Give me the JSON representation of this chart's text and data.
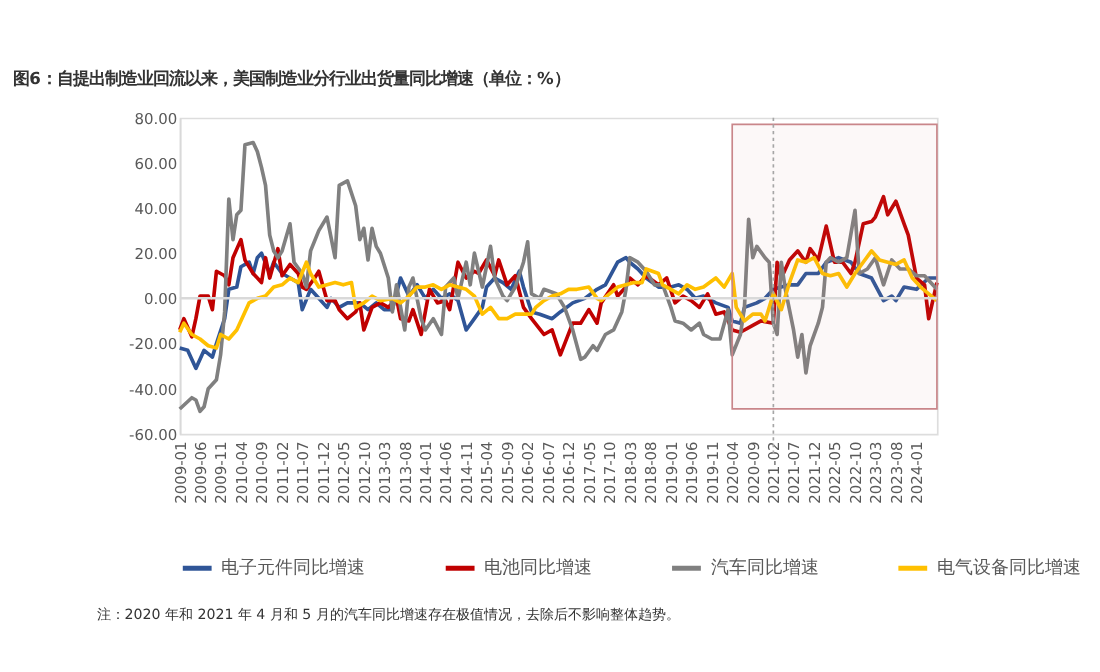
{
  "chart_data": {
    "type": "line",
    "title": "图6：自提出制造业回流以来，美国制造业分行业出货量同比增速（单位：%）",
    "annotations": [
      "注：2020 年和 2021 年 4 月和 5 月的汽车同比增速存在极值情况，去除后不影响整体趋势。"
    ],
    "xlim": [
      "2009-01",
      "2024-06"
    ],
    "xticks": [
      "2009-01",
      "2009-06",
      "2009-11",
      "2010-04",
      "2010-09",
      "2011-02",
      "2011-07",
      "2011-12",
      "2012-05",
      "2012-10",
      "2013-03",
      "2013-08",
      "2014-01",
      "2014-06",
      "2014-11",
      "2015-04",
      "2015-09",
      "2016-02",
      "2016-07",
      "2016-12",
      "2017-05",
      "2017-10",
      "2018-03",
      "2018-08",
      "2019-01",
      "2019-06",
      "2019-11",
      "2020-04",
      "2020-09",
      "2021-02",
      "2021-07",
      "2021-12",
      "2022-05",
      "2022-10",
      "2023-03",
      "2023-08",
      "2024-01"
    ],
    "ylim": [
      -60,
      80
    ],
    "yticks": [
      {
        "value": -60,
        "label": "-60.00"
      },
      {
        "value": -40,
        "label": "-40.00"
      },
      {
        "value": -20,
        "label": "-20.00"
      },
      {
        "value": 0,
        "label": "0.00"
      },
      {
        "value": 20,
        "label": "20.00"
      },
      {
        "value": 40,
        "label": "40.00"
      },
      {
        "value": 60,
        "label": "60.00"
      },
      {
        "value": 80,
        "label": "80.00"
      }
    ],
    "grid": false,
    "legend": "bottom",
    "marker": "none",
    "line_style": "solid",
    "ref_lines": [
      {
        "axis": "y",
        "value": 0,
        "color": "#d9d9d9",
        "line_style": "solid"
      },
      {
        "axis": "x",
        "value": "2021-02",
        "color": "#a6a6a6",
        "line_style": "dotted"
      }
    ],
    "bands": [
      {
        "axis": "x",
        "from": "2020-04",
        "to": "2024-06",
        "color": "#c9868a"
      }
    ],
    "series": [
      {
        "name": "电子元件同比增速",
        "color": "#2f5597",
        "x": [
          "2009-01",
          "2009-03",
          "2009-05",
          "2009-06",
          "2009-07",
          "2009-09",
          "2009-10",
          "2009-12",
          "2010-01",
          "2010-03",
          "2010-04",
          "2010-06",
          "2010-07",
          "2010-08",
          "2010-09",
          "2010-11",
          "2010-12",
          "2011-02",
          "2011-04",
          "2011-06",
          "2011-07",
          "2011-09",
          "2011-11",
          "2012-01",
          "2012-02",
          "2012-04",
          "2012-06",
          "2012-09",
          "2012-11",
          "2013-01",
          "2013-03",
          "2013-05",
          "2013-07",
          "2013-09",
          "2013-11",
          "2014-01",
          "2014-03",
          "2014-05",
          "2014-07",
          "2014-09",
          "2014-11",
          "2015-01",
          "2015-03",
          "2015-04",
          "2015-06",
          "2015-08",
          "2015-10",
          "2015-12",
          "2016-01",
          "2016-03",
          "2016-05",
          "2016-08",
          "2016-10",
          "2017-01",
          "2017-04",
          "2017-07",
          "2017-09",
          "2017-12",
          "2018-02",
          "2018-03",
          "2018-05",
          "2018-07",
          "2018-10",
          "2019-01",
          "2019-03",
          "2019-05",
          "2019-07",
          "2019-09",
          "2019-12",
          "2020-03",
          "2020-04",
          "2020-06",
          "2020-07",
          "2020-10",
          "2020-12",
          "2021-02",
          "2021-04",
          "2021-06",
          "2021-08",
          "2021-10",
          "2022-01",
          "2022-03",
          "2022-06",
          "2022-09",
          "2022-11",
          "2023-02",
          "2023-05",
          "2023-07",
          "2023-08",
          "2023-10",
          "2024-01",
          "2024-04",
          "2024-06"
        ],
        "values": [
          -22,
          -23,
          -31,
          -27,
          -23,
          -26,
          -20,
          -9,
          4,
          5,
          14,
          16,
          11,
          18,
          20,
          11,
          16,
          11,
          9,
          7,
          -5,
          4,
          0,
          -4,
          0,
          -4,
          -2,
          -2,
          -5,
          -2,
          -5,
          -5,
          9,
          1,
          6,
          0,
          4,
          0,
          2,
          -1,
          -14,
          -9,
          -4,
          5,
          9,
          7,
          4,
          12,
          5,
          -6,
          -7,
          -9,
          -6,
          -2,
          0,
          4,
          6,
          16,
          18,
          16,
          13,
          9,
          5,
          5,
          6,
          4,
          0,
          1,
          -2,
          -4,
          -10,
          -11,
          -4,
          -2,
          0,
          4,
          5,
          6,
          6,
          11,
          11,
          16,
          18,
          16,
          11,
          9,
          -1,
          1,
          -1,
          5,
          4,
          9,
          9
        ]
      },
      {
        "name": "电池同比增速",
        "color": "#c00000",
        "x": [
          "2009-01",
          "2009-02",
          "2009-04",
          "2009-05",
          "2009-06",
          "2009-08",
          "2009-09",
          "2009-10",
          "2009-12",
          "2010-01",
          "2010-02",
          "2010-04",
          "2010-05",
          "2010-07",
          "2010-09",
          "2010-10",
          "2010-11",
          "2011-01",
          "2011-02",
          "2011-04",
          "2011-06",
          "2011-07",
          "2011-08",
          "2011-10",
          "2011-11",
          "2012-01",
          "2012-03",
          "2012-04",
          "2012-06",
          "2012-08",
          "2012-09",
          "2012-10",
          "2012-12",
          "2013-02",
          "2013-04",
          "2013-06",
          "2013-07",
          "2013-09",
          "2013-10",
          "2013-12",
          "2014-02",
          "2014-04",
          "2014-06",
          "2014-07",
          "2014-09",
          "2014-11",
          "2015-01",
          "2015-02",
          "2015-04",
          "2015-06",
          "2015-07",
          "2015-09",
          "2015-11",
          "2016-01",
          "2016-03",
          "2016-06",
          "2016-08",
          "2016-10",
          "2017-01",
          "2017-03",
          "2017-05",
          "2017-07",
          "2017-08",
          "2017-11",
          "2017-12",
          "2018-02",
          "2018-03",
          "2018-05",
          "2018-07",
          "2018-10",
          "2018-12",
          "2019-02",
          "2019-04",
          "2019-06",
          "2019-08",
          "2019-10",
          "2019-12",
          "2020-02",
          "2020-04",
          "2020-06",
          "2020-09",
          "2020-11",
          "2021-02",
          "2021-03",
          "2021-04",
          "2021-06",
          "2021-08",
          "2021-10",
          "2021-11",
          "2022-01",
          "2022-03",
          "2022-05",
          "2022-07",
          "2022-09",
          "2022-10",
          "2022-12",
          "2023-02",
          "2023-03",
          "2023-05",
          "2023-06",
          "2023-08",
          "2023-10",
          "2023-11",
          "2024-01",
          "2024-03",
          "2024-04",
          "2024-06"
        ],
        "values": [
          -14,
          -9,
          -17,
          -9,
          1,
          1,
          -5,
          12,
          10,
          6,
          18,
          26,
          17,
          11,
          7,
          18,
          9,
          22,
          10,
          15,
          11,
          5,
          4,
          9,
          12,
          -1,
          -1,
          -5,
          -9,
          -6,
          -2,
          -14,
          -4,
          -2,
          -4,
          0,
          -9,
          -10,
          -5,
          -16,
          4,
          -2,
          -1,
          -5,
          16,
          9,
          12,
          11,
          17,
          10,
          17,
          6,
          10,
          -4,
          -9,
          -16,
          -14,
          -25,
          -11,
          -11,
          -5,
          -11,
          -2,
          6,
          1,
          5,
          9,
          6,
          10,
          6,
          9,
          -2,
          1,
          -1,
          -4,
          2,
          -7,
          -6,
          -14,
          -15,
          -12,
          -10,
          -11,
          16,
          9,
          17,
          21,
          16,
          22,
          17,
          32,
          16,
          16,
          11,
          16,
          33,
          34,
          36,
          45,
          37,
          43,
          33,
          28,
          9,
          6,
          -9,
          7
        ]
      },
      {
        "name": "汽车同比增速",
        "color": "#808080",
        "x": [
          "2009-01",
          "2009-04",
          "2009-05",
          "2009-06",
          "2009-07",
          "2009-08",
          "2009-10",
          "2009-11",
          "2009-12",
          "2010-01",
          "2010-02",
          "2010-03",
          "2010-04",
          "2010-05",
          "2010-07",
          "2010-08",
          "2010-09",
          "2010-10",
          "2010-11",
          "2010-12",
          "2011-01",
          "2011-02",
          "2011-04",
          "2011-05",
          "2011-07",
          "2011-08",
          "2011-09",
          "2011-11",
          "2012-01",
          "2012-03",
          "2012-04",
          "2012-06",
          "2012-08",
          "2012-09",
          "2012-10",
          "2012-11",
          "2012-12",
          "2013-01",
          "2013-02",
          "2013-04",
          "2013-05",
          "2013-06",
          "2013-08",
          "2013-09",
          "2013-10",
          "2013-12",
          "2014-01",
          "2014-03",
          "2014-05",
          "2014-06",
          "2014-08",
          "2014-09",
          "2014-11",
          "2014-12",
          "2015-01",
          "2015-03",
          "2015-05",
          "2015-06",
          "2015-08",
          "2015-09",
          "2015-11",
          "2016-01",
          "2016-02",
          "2016-03",
          "2016-05",
          "2016-06",
          "2016-09",
          "2016-11",
          "2017-01",
          "2017-03",
          "2017-04",
          "2017-06",
          "2017-07",
          "2017-09",
          "2017-11",
          "2018-01",
          "2018-02",
          "2018-03",
          "2018-05",
          "2018-07",
          "2018-09",
          "2018-11",
          "2019-01",
          "2019-02",
          "2019-04",
          "2019-06",
          "2019-08",
          "2019-09",
          "2019-11",
          "2020-01",
          "2020-03",
          "2020-04",
          "2020-06",
          "2020-07",
          "2020-08",
          "2020-09",
          "2020-10",
          "2020-12",
          "2021-01",
          "2021-02",
          "2021-03",
          "2021-04",
          "2021-05",
          "2021-07",
          "2021-08",
          "2021-09",
          "2021-10",
          "2021-11",
          "2022-01",
          "2022-02",
          "2022-03",
          "2022-04",
          "2022-06",
          "2022-08",
          "2022-10",
          "2022-11",
          "2023-01",
          "2023-03",
          "2023-05",
          "2023-07",
          "2023-09",
          "2023-11",
          "2024-01",
          "2024-03",
          "2024-05",
          "2024-06"
        ],
        "values": [
          -49,
          -44,
          -45,
          -50,
          -48,
          -40,
          -36,
          -25,
          -6,
          44,
          26,
          37,
          39,
          68,
          69,
          65,
          58,
          50,
          28,
          21,
          18,
          21,
          33,
          16,
          11,
          5,
          21,
          30,
          36,
          18,
          50,
          52,
          41,
          26,
          31,
          17,
          31,
          23,
          20,
          9,
          -6,
          6,
          -14,
          5,
          9,
          -9,
          -14,
          -9,
          -16,
          5,
          9,
          0,
          16,
          6,
          20,
          5,
          23,
          9,
          1,
          -1,
          5,
          16,
          25,
          2,
          0,
          4,
          2,
          -4,
          -14,
          -27,
          -26,
          -21,
          -23,
          -16,
          -14,
          -6,
          4,
          18,
          16,
          12,
          6,
          6,
          -4,
          -10,
          -11,
          -14,
          -11,
          -16,
          -18,
          -18,
          -5,
          -25,
          -16,
          -4,
          35,
          18,
          23,
          18,
          16,
          -11,
          -16,
          16,
          4,
          -14,
          -26,
          -16,
          -33,
          -21,
          -11,
          -4,
          16,
          18,
          16,
          18,
          39,
          11,
          13,
          18,
          6,
          17,
          13,
          13,
          10,
          10,
          6,
          4
        ]
      },
      {
        "name": "电气设备同比增速",
        "color": "#ffc000",
        "x": [
          "2009-01",
          "2009-02",
          "2009-04",
          "2009-06",
          "2009-08",
          "2009-10",
          "2009-11",
          "2010-01",
          "2010-03",
          "2010-05",
          "2010-06",
          "2010-08",
          "2010-10",
          "2010-12",
          "2011-02",
          "2011-04",
          "2011-06",
          "2011-08",
          "2011-09",
          "2011-11",
          "2012-01",
          "2012-03",
          "2012-05",
          "2012-07",
          "2012-08",
          "2012-10",
          "2012-12",
          "2013-02",
          "2013-05",
          "2013-07",
          "2013-09",
          "2013-11",
          "2014-01",
          "2014-03",
          "2014-05",
          "2014-07",
          "2014-09",
          "2014-11",
          "2015-01",
          "2015-03",
          "2015-05",
          "2015-07",
          "2015-09",
          "2015-11",
          "2016-01",
          "2016-03",
          "2016-04",
          "2016-06",
          "2016-08",
          "2016-10",
          "2016-12",
          "2017-02",
          "2017-05",
          "2017-07",
          "2017-08",
          "2017-10",
          "2017-12",
          "2018-02",
          "2018-04",
          "2018-06",
          "2018-07",
          "2018-10",
          "2018-11",
          "2019-01",
          "2019-03",
          "2019-05",
          "2019-07",
          "2019-09",
          "2019-12",
          "2020-02",
          "2020-04",
          "2020-05",
          "2020-07",
          "2020-09",
          "2020-11",
          "2020-12",
          "2021-02",
          "2021-04",
          "2021-06",
          "2021-08",
          "2021-10",
          "2021-12",
          "2022-02",
          "2022-04",
          "2022-06",
          "2022-08",
          "2022-10",
          "2022-12",
          "2023-02",
          "2023-04",
          "2023-06",
          "2023-08",
          "2023-10",
          "2023-12",
          "2024-02",
          "2024-04",
          "2024-06"
        ],
        "values": [
          -15,
          -11,
          -16,
          -18,
          -21,
          -22,
          -16,
          -18,
          -14,
          -6,
          -2,
          0,
          1,
          5,
          6,
          9,
          7,
          16,
          11,
          5,
          6,
          7,
          6,
          7,
          -4,
          -2,
          1,
          -1,
          0,
          -2,
          1,
          5,
          5,
          6,
          4,
          6,
          5,
          4,
          1,
          -7,
          -4,
          -9,
          -9,
          -7,
          -7,
          -7,
          -4,
          -1,
          1,
          2,
          4,
          4,
          5,
          0,
          -1,
          2,
          5,
          6,
          7,
          7,
          13,
          11,
          6,
          4,
          2,
          6,
          4,
          5,
          9,
          5,
          11,
          -4,
          -10,
          -7,
          -7,
          -10,
          2,
          -5,
          7,
          17,
          16,
          18,
          11,
          10,
          11,
          5,
          11,
          16,
          21,
          17,
          16,
          15,
          17,
          9,
          5,
          2,
          -1
        ]
      }
    ]
  }
}
